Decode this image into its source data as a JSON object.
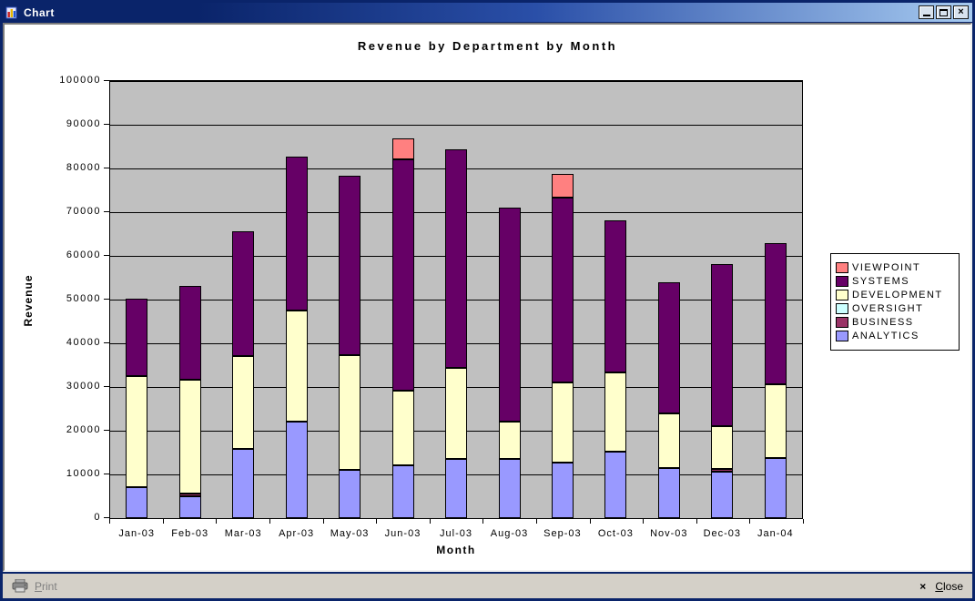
{
  "window": {
    "title": "Chart"
  },
  "icons": {
    "titlebar_close_glyph": "×",
    "statusbar_close_glyph": "×"
  },
  "statusbar": {
    "print_label": "Print",
    "close_label": "Close"
  },
  "colors": {
    "titlebar_gradient_start": "#0A246A",
    "titlebar_gradient_end": "#A6CAF0",
    "window_face": "#D4D0C8",
    "chart_background": "#FFFFFF",
    "plot_background": "#C0C0C0",
    "disabled_text": "#808080"
  },
  "chart_data": {
    "type": "bar",
    "stacked": true,
    "title": "Revenue by Department by Month",
    "xlabel": "Month",
    "ylabel": "Revenue",
    "ylim": [
      0,
      100000
    ],
    "yticks": [
      0,
      10000,
      20000,
      30000,
      40000,
      50000,
      60000,
      70000,
      80000,
      90000,
      100000
    ],
    "grid": true,
    "plot_background": "#C0C0C0",
    "legend_position": "right",
    "legend_top_to_bottom": [
      "VIEWPOINT",
      "SYSTEMS",
      "OVERSIGHT",
      "DEVELOPMENT",
      "BUSINESS",
      "ANALYTICS"
    ],
    "categories": [
      "Jan-03",
      "Feb-03",
      "Mar-03",
      "Apr-03",
      "May-03",
      "Jun-03",
      "Jul-03",
      "Aug-03",
      "Sep-03",
      "Oct-03",
      "Nov-03",
      "Dec-03",
      "Jan-04"
    ],
    "series": [
      {
        "name": "ANALYTICS",
        "color": "#9999FF",
        "values": [
          7000,
          4900,
          15800,
          22000,
          11100,
          12000,
          13500,
          13500,
          12800,
          15200,
          11500,
          10600,
          13800
        ]
      },
      {
        "name": "BUSINESS",
        "color": "#993366",
        "values": [
          0,
          700,
          0,
          0,
          0,
          0,
          0,
          0,
          0,
          0,
          0,
          700,
          0
        ]
      },
      {
        "name": "OVERSIGHT",
        "color": "#CCFFFF",
        "values": [
          0,
          0,
          0,
          0,
          0,
          0,
          0,
          0,
          0,
          0,
          0,
          0,
          0
        ]
      },
      {
        "name": "DEVELOPMENT",
        "color": "#FFFFCC",
        "values": [
          25500,
          26000,
          21200,
          25500,
          26200,
          17000,
          20800,
          8500,
          18400,
          18100,
          12400,
          9700,
          16800
        ]
      },
      {
        "name": "SYSTEMS",
        "color": "#660066",
        "values": [
          17700,
          21500,
          28600,
          35200,
          41000,
          53000,
          49900,
          49000,
          42300,
          34800,
          29900,
          37100,
          32300
        ]
      },
      {
        "name": "VIEWPOINT",
        "color": "#FF8080",
        "values": [
          0,
          0,
          0,
          0,
          0,
          4700,
          0,
          0,
          5500,
          0,
          0,
          0,
          0
        ]
      }
    ]
  }
}
